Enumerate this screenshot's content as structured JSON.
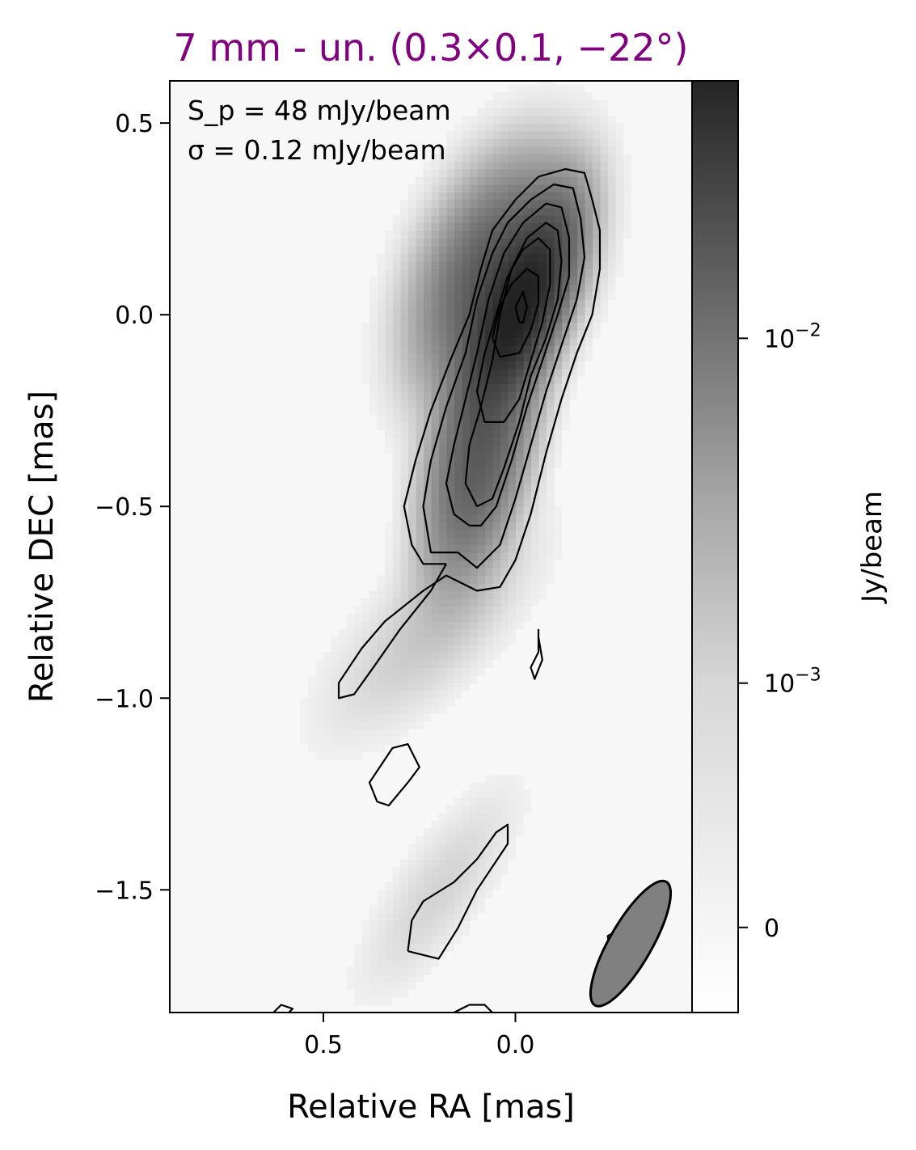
{
  "chart_data": {
    "type": "heatmap",
    "title": "7 mm - un. (0.3×0.1, −22°)",
    "title_color": "#800080",
    "xlabel": "Relative RA [mas]",
    "ylabel": "Relative DEC [mas]",
    "xlim": [
      0.9,
      -0.46
    ],
    "ylim": [
      -1.82,
      0.61
    ],
    "x_ticks": [
      0.5,
      0.0
    ],
    "x_tick_labels": [
      "0.5",
      "0.0"
    ],
    "y_ticks": [
      0.5,
      0.0,
      -0.5,
      -1.0,
      -1.5
    ],
    "y_tick_labels": [
      "0.5",
      "0.0",
      "−0.5",
      "−1.0",
      "−1.5"
    ],
    "colormap": "Greys",
    "colorbar": {
      "label": "Jy/beam",
      "scale": "symlog",
      "ticks": [
        0,
        0.001,
        0.01
      ],
      "tick_labels": [
        "0",
        "10−3",
        "10−2"
      ],
      "range": [
        -0.0002,
        0.048
      ]
    },
    "annotations": {
      "peak": "S_p = 48 mJy/beam",
      "rms": "σ = 0.12 mJy/beam"
    },
    "peak_flux_mJy_per_beam": 48,
    "rms_mJy_per_beam": 0.12,
    "beam": {
      "major_mas": 0.3,
      "minor_mas": 0.1,
      "pa_deg": -22,
      "fill": "#808080"
    },
    "emission_components": [
      {
        "x": -0.01,
        "y": 0.02,
        "amp": 0.046,
        "sx": 0.05,
        "sy": 0.14,
        "rot": -22
      },
      {
        "x": 0.05,
        "y": 0.1,
        "amp": 0.014,
        "sx": 0.09,
        "sy": 0.16,
        "rot": -22
      },
      {
        "x": 0.1,
        "y": -0.42,
        "amp": 0.009,
        "sx": 0.06,
        "sy": 0.16,
        "rot": -15
      },
      {
        "x": 0.08,
        "y": -0.25,
        "amp": 0.006,
        "sx": 0.06,
        "sy": 0.14,
        "rot": -20
      },
      {
        "x": 0.22,
        "y": -0.82,
        "amp": 0.0006,
        "sx": 0.08,
        "sy": 0.2,
        "rot": -45
      },
      {
        "x": 0.2,
        "y": -1.5,
        "amp": 0.0004,
        "sx": 0.06,
        "sy": 0.18,
        "rot": -35
      }
    ],
    "contours": [
      {
        "level": 1,
        "points": [
          [
            0.18,
            -0.65
          ],
          [
            0.24,
            -0.65
          ],
          [
            0.27,
            -0.6
          ],
          [
            0.29,
            -0.5
          ],
          [
            0.26,
            -0.38
          ],
          [
            0.22,
            -0.25
          ],
          [
            0.17,
            -0.12
          ],
          [
            0.12,
            0.0
          ],
          [
            0.09,
            0.12
          ],
          [
            0.06,
            0.22
          ],
          [
            0.0,
            0.3
          ],
          [
            -0.06,
            0.36
          ],
          [
            -0.13,
            0.38
          ],
          [
            -0.18,
            0.37
          ],
          [
            -0.2,
            0.3
          ],
          [
            -0.22,
            0.22
          ],
          [
            -0.22,
            0.12
          ],
          [
            -0.2,
            0.0
          ],
          [
            -0.16,
            -0.1
          ],
          [
            -0.12,
            -0.22
          ],
          [
            -0.08,
            -0.36
          ],
          [
            -0.04,
            -0.52
          ],
          [
            0.0,
            -0.64
          ],
          [
            0.04,
            -0.71
          ],
          [
            0.1,
            -0.72
          ],
          [
            0.18,
            -0.68
          ],
          [
            0.24,
            -0.72
          ],
          [
            0.34,
            -0.8
          ],
          [
            0.4,
            -0.87
          ],
          [
            0.46,
            -0.96
          ],
          [
            0.46,
            -1.0
          ],
          [
            0.42,
            -0.99
          ],
          [
            0.37,
            -0.92
          ],
          [
            0.3,
            -0.82
          ],
          [
            0.22,
            -0.72
          ],
          [
            0.18,
            -0.65
          ]
        ]
      },
      {
        "level": 2,
        "points": [
          [
            0.15,
            -0.62
          ],
          [
            0.22,
            -0.62
          ],
          [
            0.24,
            -0.5
          ],
          [
            0.22,
            -0.38
          ],
          [
            0.18,
            -0.24
          ],
          [
            0.13,
            -0.1
          ],
          [
            0.1,
            0.04
          ],
          [
            0.06,
            0.16
          ],
          [
            0.02,
            0.24
          ],
          [
            -0.04,
            0.3
          ],
          [
            -0.1,
            0.34
          ],
          [
            -0.15,
            0.33
          ],
          [
            -0.17,
            0.25
          ],
          [
            -0.18,
            0.15
          ],
          [
            -0.16,
            0.04
          ],
          [
            -0.12,
            -0.08
          ],
          [
            -0.08,
            -0.2
          ],
          [
            -0.04,
            -0.34
          ],
          [
            0.0,
            -0.48
          ],
          [
            0.04,
            -0.6
          ],
          [
            0.1,
            -0.66
          ],
          [
            0.15,
            -0.62
          ]
        ]
      },
      {
        "level": 3,
        "points": [
          [
            0.12,
            -0.55
          ],
          [
            0.16,
            -0.52
          ],
          [
            0.18,
            -0.44
          ],
          [
            0.16,
            -0.34
          ],
          [
            0.13,
            -0.22
          ],
          [
            0.1,
            -0.1
          ],
          [
            0.07,
            0.04
          ],
          [
            0.03,
            0.16
          ],
          [
            -0.02,
            0.24
          ],
          [
            -0.08,
            0.29
          ],
          [
            -0.12,
            0.28
          ],
          [
            -0.14,
            0.2
          ],
          [
            -0.14,
            0.1
          ],
          [
            -0.11,
            0.0
          ],
          [
            -0.07,
            -0.12
          ],
          [
            -0.03,
            -0.24
          ],
          [
            0.01,
            -0.38
          ],
          [
            0.05,
            -0.5
          ],
          [
            0.09,
            -0.55
          ],
          [
            0.12,
            -0.55
          ]
        ]
      },
      {
        "level": 4,
        "points": [
          [
            0.1,
            -0.5
          ],
          [
            0.13,
            -0.44
          ],
          [
            0.12,
            -0.34
          ],
          [
            0.09,
            -0.24
          ],
          [
            0.06,
            -0.12
          ],
          [
            0.04,
            0.0
          ],
          [
            0.01,
            0.12
          ],
          [
            -0.03,
            0.2
          ],
          [
            -0.08,
            0.24
          ],
          [
            -0.11,
            0.22
          ],
          [
            -0.12,
            0.14
          ],
          [
            -0.11,
            0.04
          ],
          [
            -0.08,
            -0.06
          ],
          [
            -0.04,
            -0.16
          ],
          [
            -0.01,
            -0.28
          ],
          [
            0.03,
            -0.4
          ],
          [
            0.06,
            -0.48
          ],
          [
            0.1,
            -0.5
          ]
        ]
      },
      {
        "level": 5,
        "points": [
          [
            0.08,
            -0.28
          ],
          [
            0.1,
            -0.2
          ],
          [
            0.08,
            -0.1
          ],
          [
            0.05,
            0.0
          ],
          [
            0.02,
            0.1
          ],
          [
            -0.02,
            0.17
          ],
          [
            -0.06,
            0.2
          ],
          [
            -0.09,
            0.17
          ],
          [
            -0.09,
            0.08
          ],
          [
            -0.07,
            -0.02
          ],
          [
            -0.04,
            -0.12
          ],
          [
            -0.01,
            -0.22
          ],
          [
            0.03,
            -0.28
          ],
          [
            0.08,
            -0.28
          ]
        ]
      },
      {
        "level": 6,
        "points": [
          [
            0.04,
            -0.11
          ],
          [
            0.06,
            -0.06
          ],
          [
            0.04,
            0.02
          ],
          [
            0.01,
            0.08
          ],
          [
            -0.03,
            0.12
          ],
          [
            -0.06,
            0.1
          ],
          [
            -0.06,
            0.03
          ],
          [
            -0.04,
            -0.04
          ],
          [
            -0.01,
            -0.1
          ],
          [
            0.04,
            -0.11
          ]
        ]
      },
      {
        "level": 7,
        "points": [
          [
            -0.01,
            -0.02
          ],
          [
            0.0,
            0.02
          ],
          [
            -0.02,
            0.06
          ],
          [
            -0.03,
            0.02
          ],
          [
            -0.02,
            -0.02
          ],
          [
            -0.01,
            -0.02
          ]
        ]
      },
      {
        "level": 1,
        "points": [
          [
            -0.06,
            -0.82
          ],
          [
            -0.06,
            -0.88
          ],
          [
            -0.04,
            -0.92
          ],
          [
            -0.05,
            -0.95
          ],
          [
            -0.07,
            -0.9
          ],
          [
            -0.06,
            -0.84
          ],
          [
            -0.06,
            -0.82
          ]
        ]
      },
      {
        "level": 1,
        "points": [
          [
            0.36,
            -1.27
          ],
          [
            0.38,
            -1.22
          ],
          [
            0.32,
            -1.13
          ],
          [
            0.28,
            -1.12
          ],
          [
            0.25,
            -1.18
          ],
          [
            0.28,
            -1.22
          ],
          [
            0.33,
            -1.28
          ],
          [
            0.36,
            -1.27
          ]
        ]
      },
      {
        "level": 1,
        "points": [
          [
            0.28,
            -1.66
          ],
          [
            0.2,
            -1.68
          ],
          [
            0.15,
            -1.6
          ],
          [
            0.1,
            -1.5
          ],
          [
            0.02,
            -1.38
          ],
          [
            0.02,
            -1.33
          ],
          [
            0.05,
            -1.35
          ],
          [
            0.1,
            -1.42
          ],
          [
            0.16,
            -1.48
          ],
          [
            0.24,
            -1.53
          ],
          [
            0.27,
            -1.58
          ],
          [
            0.28,
            -1.66
          ]
        ]
      },
      {
        "level": 1,
        "points": [
          [
            -0.24,
            -1.62
          ],
          [
            -0.28,
            -1.6
          ],
          [
            -0.28,
            -1.65
          ],
          [
            -0.25,
            -1.67
          ],
          [
            -0.24,
            -1.62
          ]
        ]
      },
      {
        "level": 1,
        "points": [
          [
            0.63,
            -1.82
          ],
          [
            0.61,
            -1.8
          ],
          [
            0.58,
            -1.81
          ],
          [
            0.59,
            -1.82
          ]
        ]
      },
      {
        "level": 1,
        "points": [
          [
            0.16,
            -1.82
          ],
          [
            0.12,
            -1.8
          ],
          [
            0.08,
            -1.8
          ],
          [
            0.06,
            -1.82
          ]
        ]
      }
    ]
  }
}
